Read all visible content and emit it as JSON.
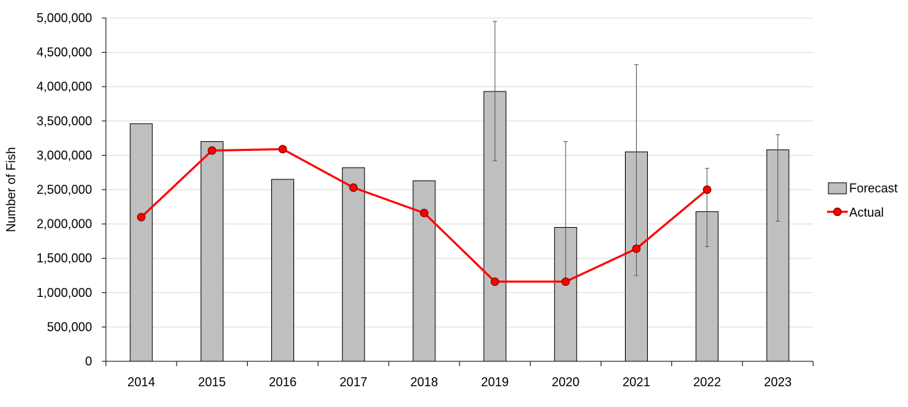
{
  "chart_data": {
    "type": "bar",
    "ylabel": "Number of Fish",
    "xlabel": "",
    "ylim": [
      0,
      5000000
    ],
    "ytick_step": 500000,
    "y_tick_labels": [
      "0",
      "500,000",
      "1,000,000",
      "1,500,000",
      "2,000,000",
      "2,500,000",
      "3,000,000",
      "3,500,000",
      "4,000,000",
      "4,500,000",
      "5,000,000"
    ],
    "grid": true,
    "legend_position": "right",
    "categories": [
      "2014",
      "2015",
      "2016",
      "2017",
      "2018",
      "2019",
      "2020",
      "2021",
      "2022",
      "2023"
    ],
    "series": [
      {
        "name": "Forecast",
        "type": "bar",
        "color": "#bfbfbf",
        "values": [
          3460000,
          3200000,
          2650000,
          2820000,
          2630000,
          3930000,
          1950000,
          3050000,
          2180000,
          3080000
        ],
        "error_low": [
          null,
          null,
          null,
          null,
          null,
          2920000,
          1150000,
          1250000,
          1670000,
          2040000
        ],
        "error_high": [
          null,
          null,
          null,
          null,
          null,
          4950000,
          3200000,
          4320000,
          2810000,
          3300000
        ]
      },
      {
        "name": "Actual",
        "type": "line",
        "color": "#ff0000",
        "values": [
          2100000,
          3070000,
          3090000,
          2530000,
          2160000,
          1160000,
          1160000,
          1640000,
          2500000,
          null
        ]
      }
    ]
  }
}
